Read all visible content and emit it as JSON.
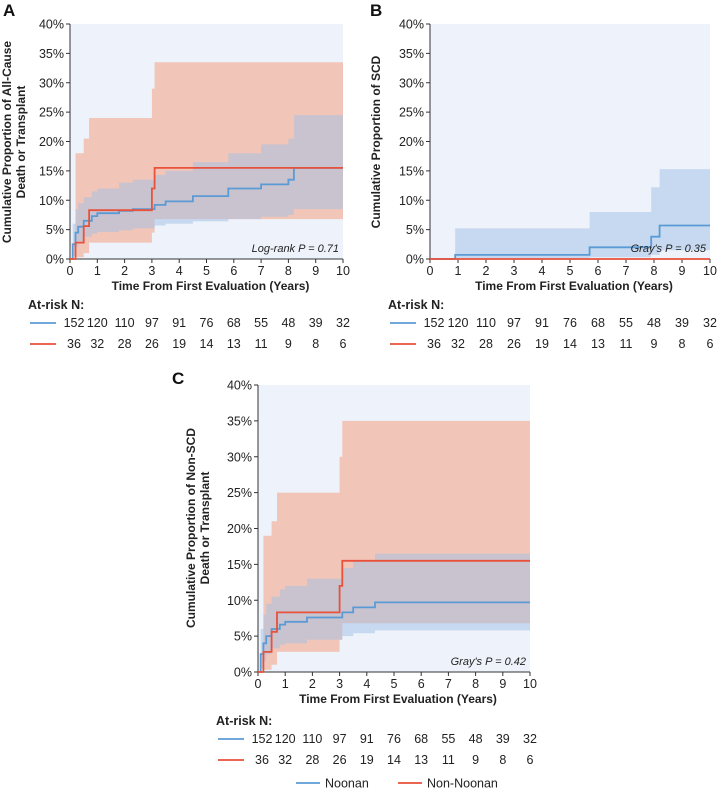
{
  "chart_data": [
    {
      "panel": "A",
      "type": "line",
      "ylabel": "Cumulative Proportion of All-Cause\nDeath or Transplant",
      "xlabel": "Time From First Evaluation (Years)",
      "xlim": [
        0,
        10
      ],
      "ylim": [
        0,
        40
      ],
      "xticks": [
        "0",
        "1",
        "2",
        "3",
        "4",
        "5",
        "6",
        "7",
        "8",
        "9",
        "10"
      ],
      "yticks": [
        "0%",
        "5%",
        "10%",
        "15%",
        "20%",
        "25%",
        "30%",
        "35%",
        "40%"
      ],
      "annotation": "Log-rank P = 0.71",
      "series": [
        {
          "name": "Noonan",
          "color": "#5b9bd5",
          "x": [
            0,
            0.1,
            0.2,
            0.3,
            0.5,
            0.8,
            1.0,
            1.8,
            2.3,
            3.1,
            3.5,
            4.5,
            5.8,
            7.0,
            8.0,
            8.2,
            10
          ],
          "y": [
            0,
            2.5,
            4.5,
            5.5,
            6.5,
            7.3,
            7.8,
            8.2,
            8.5,
            9.2,
            9.8,
            10.7,
            12.0,
            12.7,
            13.5,
            15.5,
            15.5
          ],
          "ci_lower": [
            0,
            0.5,
            2.0,
            3.0,
            3.8,
            4.3,
            4.6,
            4.9,
            5.2,
            5.7,
            6.0,
            6.4,
            6.8,
            7.2,
            7.5,
            8.5,
            8.5
          ],
          "ci_upper": [
            0,
            6.0,
            8.5,
            9.5,
            10.5,
            11.5,
            12.0,
            13.0,
            13.5,
            14.3,
            15.0,
            16.5,
            18.0,
            19.5,
            20.5,
            24.5,
            24.5
          ]
        },
        {
          "name": "Non-Noonan",
          "color": "#e8513a",
          "x": [
            0,
            0.2,
            0.5,
            0.7,
            3.0,
            3.1,
            10
          ],
          "y": [
            0,
            2.8,
            5.6,
            8.3,
            12.0,
            15.5,
            15.5
          ],
          "ci_lower": [
            0,
            0.3,
            1.0,
            2.8,
            4.5,
            6.8,
            6.8
          ],
          "ci_upper": [
            0,
            18.0,
            20.5,
            24.0,
            29.0,
            33.5,
            33.5
          ]
        }
      ],
      "at_risk": {
        "title": "At-risk N:",
        "rows": [
          {
            "name": "Noonan",
            "values": [
              "152",
              "120",
              "110",
              "97",
              "91",
              "76",
              "68",
              "55",
              "48",
              "39",
              "32"
            ]
          },
          {
            "name": "Non-Noonan",
            "values": [
              "36",
              "32",
              "28",
              "26",
              "19",
              "14",
              "13",
              "11",
              "9",
              "8",
              "6"
            ]
          }
        ]
      }
    },
    {
      "panel": "B",
      "type": "line",
      "ylabel": "Cumulative Proportion of SCD",
      "xlabel": "Time From First Evaluation (Years)",
      "xlim": [
        0,
        10
      ],
      "ylim": [
        0,
        40
      ],
      "xticks": [
        "0",
        "1",
        "2",
        "3",
        "4",
        "5",
        "6",
        "7",
        "8",
        "9",
        "10"
      ],
      "yticks": [
        "0%",
        "5%",
        "10%",
        "15%",
        "20%",
        "25%",
        "30%",
        "35%",
        "40%"
      ],
      "annotation": "Gray's P = 0.35",
      "series": [
        {
          "name": "Noonan",
          "color": "#5b9bd5",
          "x": [
            0,
            0.9,
            5.7,
            7.9,
            8.2,
            10
          ],
          "y": [
            0,
            0.7,
            2.0,
            3.8,
            5.7,
            5.7
          ],
          "ci_lower": [
            0,
            0.1,
            0.3,
            0.7,
            1.5,
            1.5
          ],
          "ci_upper": [
            0,
            5.2,
            8.0,
            12.2,
            15.3,
            15.3
          ]
        },
        {
          "name": "Non-Noonan",
          "color": "#e8513a",
          "x": [
            0,
            10
          ],
          "y": [
            0,
            0
          ],
          "ci_lower": [
            0,
            0
          ],
          "ci_upper": [
            0,
            0
          ]
        }
      ],
      "at_risk": {
        "title": "At-risk N:",
        "rows": [
          {
            "name": "Noonan",
            "values": [
              "152",
              "120",
              "110",
              "97",
              "91",
              "76",
              "68",
              "55",
              "48",
              "39",
              "32"
            ]
          },
          {
            "name": "Non-Noonan",
            "values": [
              "36",
              "32",
              "28",
              "26",
              "19",
              "14",
              "13",
              "11",
              "9",
              "8",
              "6"
            ]
          }
        ]
      }
    },
    {
      "panel": "C",
      "type": "line",
      "ylabel": "Cumulative Proportion of Non-SCD\nDeath or Transplant",
      "xlabel": "Time From First Evaluation (Years)",
      "xlim": [
        0,
        10
      ],
      "ylim": [
        0,
        40
      ],
      "xticks": [
        "0",
        "1",
        "2",
        "3",
        "4",
        "5",
        "6",
        "7",
        "8",
        "9",
        "10"
      ],
      "yticks": [
        "0%",
        "5%",
        "10%",
        "15%",
        "20%",
        "25%",
        "30%",
        "35%",
        "40%"
      ],
      "annotation": "Gray's P = 0.42",
      "series": [
        {
          "name": "Noonan",
          "color": "#5b9bd5",
          "x": [
            0,
            0.1,
            0.2,
            0.3,
            0.5,
            0.8,
            1.0,
            1.8,
            3.1,
            3.5,
            4.3,
            10
          ],
          "y": [
            0,
            2.5,
            4.0,
            5.0,
            6.0,
            6.6,
            7.0,
            7.6,
            8.3,
            9.0,
            9.7,
            9.7
          ],
          "ci_lower": [
            0,
            0.5,
            1.5,
            2.5,
            3.3,
            3.8,
            4.0,
            4.5,
            5.0,
            5.4,
            5.8,
            5.8
          ],
          "ci_upper": [
            0,
            6.0,
            8.0,
            9.5,
            10.5,
            11.5,
            12.0,
            13.0,
            14.5,
            15.5,
            16.5,
            16.5
          ]
        },
        {
          "name": "Non-Noonan",
          "color": "#e8513a",
          "x": [
            0,
            0.2,
            0.5,
            0.7,
            3.0,
            3.1,
            10
          ],
          "y": [
            0,
            2.8,
            5.6,
            8.3,
            12.0,
            15.5,
            15.5
          ],
          "ci_lower": [
            0,
            0.3,
            1.0,
            2.8,
            4.5,
            6.8,
            6.8
          ],
          "ci_upper": [
            0,
            19.0,
            21.0,
            25.0,
            30.0,
            35.0,
            35.0
          ]
        }
      ],
      "at_risk": {
        "title": "At-risk N:",
        "rows": [
          {
            "name": "Noonan",
            "values": [
              "152",
              "120",
              "110",
              "97",
              "91",
              "76",
              "68",
              "55",
              "48",
              "39",
              "32"
            ]
          },
          {
            "name": "Non-Noonan",
            "values": [
              "36",
              "32",
              "28",
              "26",
              "19",
              "14",
              "13",
              "11",
              "9",
              "8",
              "6"
            ]
          }
        ]
      }
    }
  ],
  "legend": [
    {
      "name": "Noonan",
      "color": "#5b9bd5"
    },
    {
      "name": "Non-Noonan",
      "color": "#e8513a"
    }
  ]
}
